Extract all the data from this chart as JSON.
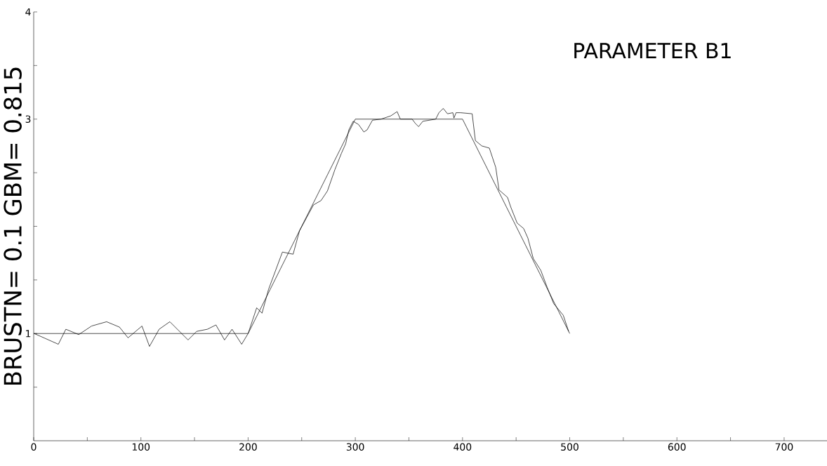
{
  "chart_data": {
    "type": "line",
    "title": "PARAMETER B1",
    "ylabel": "BRUSTN= 0.1 GBM= 0.815",
    "xlim": [
      0,
      740
    ],
    "ylim": [
      0,
      4
    ],
    "xticks": [
      0,
      {
        "value": 50,
        "label": null
      },
      100,
      {
        "value": 150,
        "label": null
      },
      200,
      {
        "value": 250,
        "label": null
      },
      300,
      {
        "value": 350,
        "label": null
      },
      400,
      {
        "value": 450,
        "label": null
      },
      500,
      {
        "value": 550,
        "label": null
      },
      600,
      {
        "value": 650,
        "label": null
      },
      700
    ],
    "yticks": [
      {
        "value": 0.5,
        "label": null
      },
      1,
      {
        "value": 1.5,
        "label": null
      },
      {
        "value": 2,
        "label": null
      },
      {
        "value": 2.5,
        "label": null
      },
      3,
      {
        "value": 3.5,
        "label": null
      },
      4
    ],
    "series": [
      {
        "color": "#000000",
        "x": [
          0,
          200,
          300,
          400,
          500
        ],
        "values": [
          1,
          1,
          3,
          3,
          1
        ]
      },
      {
        "color": "#000000",
        "x": [
          0.5,
          23,
          30,
          42,
          54,
          68,
          80,
          88,
          101,
          108,
          117,
          127,
          135,
          144,
          152,
          162,
          170,
          178,
          185,
          194,
          200,
          208,
          213,
          219,
          232,
          242,
          248,
          261,
          268,
          274,
          281,
          287,
          291,
          294,
          298,
          303,
          308,
          311,
          316,
          324,
          333,
          339,
          342,
          353,
          356,
          359,
          363,
          375,
          378,
          382,
          386,
          391,
          392,
          394,
          398,
          409,
          412,
          418,
          425,
          431,
          434,
          442,
          445,
          451,
          457,
          461,
          466,
          473,
          479,
          485,
          494,
          499
        ],
        "values": [
          1.0,
          0.9,
          1.04,
          0.99,
          1.07,
          1.11,
          1.06,
          0.96,
          1.07,
          0.88,
          1.04,
          1.11,
          1.03,
          0.94,
          1.02,
          1.04,
          1.08,
          0.94,
          1.04,
          0.9,
          1.0,
          1.24,
          1.19,
          1.41,
          1.76,
          1.74,
          1.96,
          2.2,
          2.24,
          2.33,
          2.53,
          2.68,
          2.77,
          2.9,
          2.98,
          2.95,
          2.88,
          2.9,
          2.99,
          3.0,
          3.03,
          3.07,
          3.0,
          3.0,
          2.96,
          2.93,
          2.98,
          3.0,
          3.06,
          3.1,
          3.05,
          3.06,
          3.01,
          3.06,
          3.06,
          3.05,
          2.8,
          2.75,
          2.73,
          2.55,
          2.34,
          2.27,
          2.18,
          2.03,
          1.98,
          1.89,
          1.7,
          1.59,
          1.43,
          1.28,
          1.17,
          1.02
        ]
      }
    ]
  }
}
